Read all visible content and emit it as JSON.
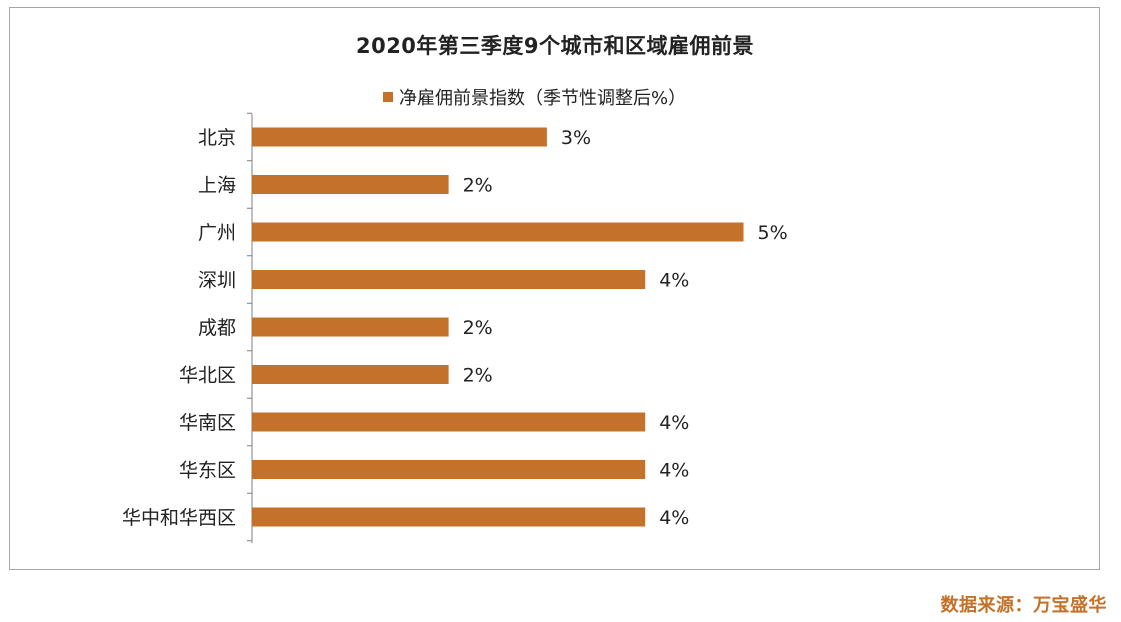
{
  "chart_data": {
    "type": "bar",
    "orientation": "horizontal",
    "title": "2020年第三季度9个城市和区域雇佣前景",
    "categories": [
      "北京",
      "上海",
      "广州",
      "深圳",
      "成都",
      "华北区",
      "华南区",
      "华东区",
      "华中和华西区"
    ],
    "series": [
      {
        "name": "净雇佣前景指数（季节性调整后%）",
        "values": [
          3,
          2,
          5,
          4,
          2,
          2,
          4,
          4,
          4
        ],
        "labels": [
          "3%",
          "2%",
          "5%",
          "4%",
          "2%",
          "2%",
          "4%",
          "4%",
          "4%"
        ],
        "color": "#c47129"
      }
    ],
    "xlim": [
      0,
      5
    ],
    "legend_position": "top",
    "grid": false
  },
  "source_note": "数据来源：万宝盛华"
}
